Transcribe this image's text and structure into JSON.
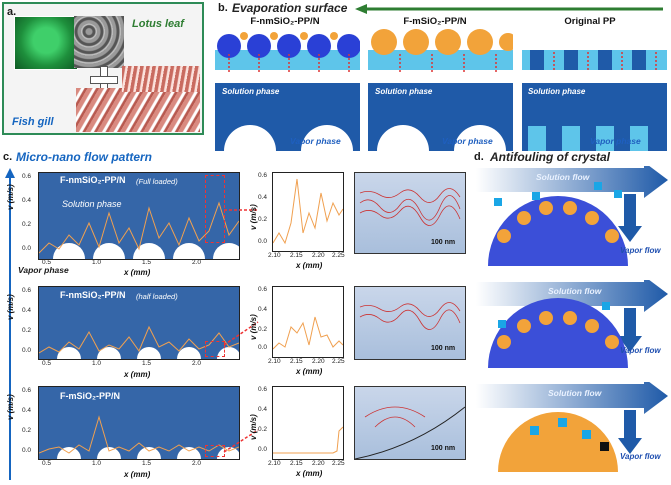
{
  "panel_a": {
    "label": "a.",
    "lotus": "Lotus leaf",
    "fish": "Fish gill"
  },
  "panel_b": {
    "label": "b.",
    "title": "Evaporation surface",
    "col1": "F-nmSiO₂-PP/N",
    "col2": "F-mSiO₂-PP/N",
    "col3": "Original PP",
    "solution": "Solution phase",
    "vapor": "Vapor phase"
  },
  "panel_c": {
    "label": "c.",
    "title": "Micro-nano flow pattern",
    "row1_title": "F-nmSiO₂-PP/N",
    "row1_note": "(Full loaded)",
    "row1_solution": "Solution phase",
    "row1_vapor": "Vapor phase",
    "row2_title": "F-nmSiO₂-PP/N",
    "row2_note": "(half loaded)",
    "row3_title": "F-mSiO₂-PP/N",
    "ylabel": "v (m/s)",
    "xlabel": "x (mm)",
    "scale": "100 nm",
    "row1_yticks": [
      "0.6",
      "0.4",
      "0.2",
      "0.0"
    ],
    "row2_yticks": [
      "0.6",
      "0.4",
      "0.2",
      "0.0"
    ],
    "row3_yticks": [
      "0.6",
      "0.4",
      "0.2",
      "0.0"
    ],
    "row1_xticks": [
      "0.5",
      "1.0",
      "1.5",
      "2.0"
    ],
    "row2_xticks": [
      "0.5",
      "1.0",
      "1.5",
      "2.0"
    ],
    "row3_xticks": [
      "0.5",
      "1.0",
      "1.5",
      "2.0"
    ],
    "zoom1_yticks": [
      "0.6",
      "0.4",
      "0.2",
      "0.0"
    ],
    "zoom1_xticks": [
      "2.10",
      "2.15",
      "2.20",
      "2.25"
    ],
    "zoom2_yticks": [
      "0.6",
      "0.4",
      "0.2",
      "0.0"
    ],
    "zoom2_xticks": [
      "2.10",
      "2.15",
      "2.20",
      "2.25"
    ],
    "zoom3_yticks": [
      "0.6",
      "0.4",
      "0.2",
      "0.0"
    ],
    "zoom3_xticks": [
      "2.10",
      "2.15",
      "2.20",
      "2.25"
    ]
  },
  "panel_d": {
    "label": "d.",
    "title": "Antifouling of crystal",
    "solution_flow": "Solution flow",
    "vapor_flow": "Vapor flow"
  },
  "colors": {
    "accent_blue": "#1565c0",
    "plot_bg": "#3566a8",
    "signal": "#f0a050",
    "sphere_blue": "#3b4fd8",
    "sphere_orange": "#f2a33a"
  }
}
